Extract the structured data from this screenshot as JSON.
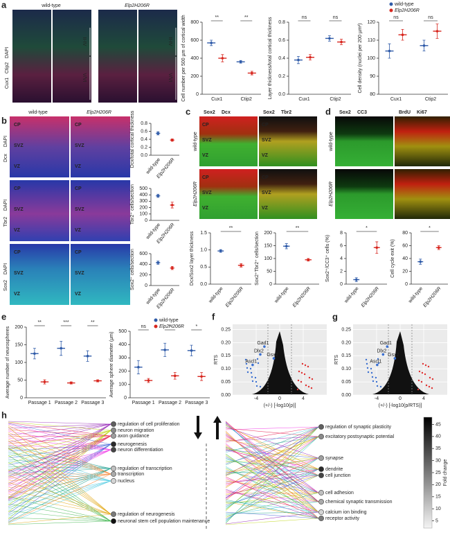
{
  "panel_labels": [
    "a",
    "b",
    "c",
    "d",
    "e",
    "f",
    "g",
    "h"
  ],
  "legend": [
    {
      "name": "wild-type",
      "color": "#2e5aa8"
    },
    {
      "name": "Elp2H206R",
      "color": "#d7261e"
    }
  ],
  "images": {
    "a": {
      "columns": [
        "wild-type",
        "Elp2H206R"
      ],
      "stains": [
        {
          "text": "Cux1",
          "color": "#3fbf3f"
        },
        {
          "text": "Ctip2",
          "color": "#e0304a"
        },
        {
          "text": "DAPI",
          "color": "#3355dd"
        }
      ],
      "layers": [
        "II-IV",
        "V/VI"
      ]
    },
    "b": {
      "columns": [
        "wild-type",
        "Elp2H206R"
      ],
      "rows": [
        [
          {
            "text": "Dcx",
            "color": "#e0304a"
          },
          {
            "text": "DAPI",
            "color": "#3355dd"
          }
        ],
        [
          {
            "text": "Tbr2",
            "color": "#e0304a"
          },
          {
            "text": "DAPI",
            "color": "#3355dd"
          }
        ],
        [
          {
            "text": "Sox2",
            "color": "#2fb84a"
          },
          {
            "text": "DAPI",
            "color": "#3355dd"
          }
        ]
      ],
      "zones": [
        "CP",
        "SVZ",
        "VZ"
      ]
    },
    "c": {
      "headers": [
        [
          {
            "text": "Sox2",
            "color": "#2fb84a"
          },
          {
            "text": "Dcx",
            "color": "#e0304a"
          }
        ],
        [
          {
            "text": "Sox2",
            "color": "#2fb84a"
          },
          {
            "text": "Tbr2",
            "color": "#e0304a"
          }
        ]
      ],
      "rows": [
        "wild-type",
        "Elp2H206R"
      ],
      "zones": [
        "CP",
        "SVZ",
        "VZ"
      ]
    },
    "d": {
      "headers": [
        [
          {
            "text": "Sox2",
            "color": "#2fb84a"
          },
          {
            "text": "CC3",
            "color": "#e0304a"
          }
        ],
        [
          {
            "text": "BrdU",
            "color": "#2fb84a"
          },
          {
            "text": "Ki67",
            "color": "#e0304a"
          }
        ]
      ],
      "rows": [
        "wild-type",
        "Elp2H206R"
      ]
    }
  },
  "chart_data": [
    {
      "type": "dot",
      "ylabel": "Cell number per 500 µm of cortical width",
      "categories": [
        "Cux1",
        "Ctip2"
      ],
      "series": [
        {
          "color": "#2e5aa8",
          "values": [
            570,
            360
          ],
          "errors": [
            30,
            15
          ]
        },
        {
          "color": "#d7261e",
          "values": [
            400,
            235
          ],
          "errors": [
            40,
            20
          ]
        }
      ],
      "ylim": [
        0,
        800
      ],
      "yticks": [
        0,
        200,
        400,
        600,
        800
      ],
      "significance": [
        "**",
        "**"
      ]
    },
    {
      "type": "dot",
      "ylabel": "Layer thickness/total cortical thickness",
      "categories": [
        "Cux1",
        "Ctip2"
      ],
      "series": [
        {
          "color": "#2e5aa8",
          "values": [
            0.38,
            0.62
          ],
          "errors": [
            0.04,
            0.03
          ]
        },
        {
          "color": "#d7261e",
          "values": [
            0.41,
            0.58
          ],
          "errors": [
            0.03,
            0.03
          ]
        }
      ],
      "ylim": [
        0,
        0.8
      ],
      "yticks": [
        {
          "value": 0,
          "label": "0.0"
        },
        0.2,
        0.4,
        0.6,
        0.8
      ],
      "significance": [
        "ns",
        "ns"
      ]
    },
    {
      "type": "dot",
      "ylabel": "Cell density (nuclei per 200 µm²)",
      "categories": [
        "Cux1",
        "Ctip2"
      ],
      "series": [
        {
          "color": "#2e5aa8",
          "values": [
            104,
            107
          ],
          "errors": [
            4,
            3
          ]
        },
        {
          "color": "#d7261e",
          "values": [
            113,
            115
          ],
          "errors": [
            3,
            4
          ]
        }
      ],
      "ylim": [
        80,
        120
      ],
      "yticks": [
        80,
        90,
        100,
        110,
        120
      ],
      "significance": [
        "ns",
        "ns"
      ]
    },
    {
      "type": "dot2",
      "ylabel": "Dcx/total cortical thickness",
      "categories": [
        "wild-type",
        "Elp2H206R"
      ],
      "values": [
        0.55,
        0.38
      ],
      "errors": [
        0.04,
        0.03
      ],
      "colors": [
        "#2e5aa8",
        "#d7261e"
      ],
      "ylim": [
        0,
        0.8
      ],
      "yticks": [
        {
          "value": 0,
          "label": "0.0"
        },
        0.2,
        0.4,
        0.6,
        0.8
      ]
    },
    {
      "type": "dot2",
      "ylabel": "Tbr2⁺ cells/section",
      "categories": [
        "wild-type",
        "Elp2H206R"
      ],
      "values": [
        385,
        240
      ],
      "errors": [
        25,
        45
      ],
      "colors": [
        "#2e5aa8",
        "#d7261e"
      ],
      "ylim": [
        0,
        500
      ],
      "yticks": [
        0,
        100,
        200,
        300,
        400,
        500
      ]
    },
    {
      "type": "dot2",
      "ylabel": "Sox2⁺ cells/section",
      "categories": [
        "wild-type",
        "Elp2H206R"
      ],
      "values": [
        430,
        330
      ],
      "errors": [
        30,
        30
      ],
      "colors": [
        "#2e5aa8",
        "#d7261e"
      ],
      "ylim": [
        0,
        600
      ],
      "yticks": [
        0,
        200,
        400,
        600
      ]
    },
    {
      "type": "dot2",
      "ylabel": "Dcx/Sox2 layer thickness",
      "categories": [
        "wild-type",
        "Elp2H206R"
      ],
      "values": [
        0.97,
        0.55
      ],
      "errors": [
        0.04,
        0.05
      ],
      "colors": [
        "#2e5aa8",
        "#d7261e"
      ],
      "ylim": [
        0,
        1.5
      ],
      "yticks": [
        {
          "value": 0,
          "label": "0.0"
        },
        0.5,
        {
          "value": 1,
          "label": "1.0"
        },
        1.5
      ],
      "significance": "**"
    },
    {
      "type": "dot2",
      "ylabel": "Sox2⁺Tbr2⁺ cells/section",
      "categories": [
        "wild-type",
        "Elp2H206R"
      ],
      "values": [
        148,
        95
      ],
      "errors": [
        10,
        5
      ],
      "colors": [
        "#2e5aa8",
        "#d7261e"
      ],
      "ylim": [
        0,
        200
      ],
      "yticks": [
        0,
        50,
        100,
        150,
        200
      ],
      "significance": "**"
    },
    {
      "type": "dot2",
      "ylabel": "Sox2⁺/CC3⁺ cells (%)",
      "categories": [
        "wild-type",
        "Elp2H206R"
      ],
      "values": [
        0.7,
        5.7
      ],
      "errors": [
        0.3,
        0.9
      ],
      "colors": [
        "#2e5aa8",
        "#d7261e"
      ],
      "ylim": [
        0,
        8
      ],
      "yticks": [
        0,
        2,
        4,
        6,
        8
      ],
      "significance": "*"
    },
    {
      "type": "dot2",
      "ylabel": "Cell cycle exit (%)",
      "categories": [
        "wild-type",
        "Elp2H206R"
      ],
      "values": [
        35,
        57
      ],
      "errors": [
        4,
        3
      ],
      "colors": [
        "#2e5aa8",
        "#d7261e"
      ],
      "ylim": [
        0,
        80
      ],
      "yticks": [
        0,
        20,
        40,
        60,
        80
      ],
      "significance": "*"
    },
    {
      "type": "dot",
      "ylabel": "Average number of neurospheres",
      "categories": [
        "Passage 1",
        "Passage 2",
        "Passage 3"
      ],
      "series": [
        {
          "color": "#2e5aa8",
          "values": [
            125,
            140,
            118
          ],
          "errors": [
            15,
            20,
            15
          ]
        },
        {
          "color": "#d7261e",
          "values": [
            45,
            42,
            48
          ],
          "errors": [
            6,
            3,
            3
          ]
        }
      ],
      "ylim": [
        0,
        200
      ],
      "yticks": [
        0,
        50,
        100,
        150,
        200
      ],
      "significance": [
        "**",
        "***",
        "**"
      ]
    },
    {
      "type": "dot",
      "ylabel": "Average sphere diameter (µm)",
      "categories": [
        "Passage 1",
        "Passage 2",
        "Passage 3"
      ],
      "series": [
        {
          "color": "#2e5aa8",
          "values": [
            230,
            360,
            355
          ],
          "errors": [
            50,
            50,
            40
          ]
        },
        {
          "color": "#d7261e",
          "values": [
            130,
            165,
            160
          ],
          "errors": [
            15,
            25,
            30
          ]
        }
      ],
      "ylim": [
        0,
        500
      ],
      "yticks": [
        0,
        100,
        200,
        300,
        400,
        500
      ],
      "significance": [
        "ns",
        "*",
        "*"
      ]
    },
    {
      "type": "volcano",
      "xlabel": "(+/-) [-log10(p)]",
      "ylabel": "RTS",
      "xlim": [
        -8,
        8
      ],
      "xticks": [
        -4,
        0,
        4
      ],
      "ylim": [
        0,
        0.27
      ],
      "yticks": [
        {
          "value": 0,
          "label": "0.00"
        },
        0.05,
        {
          "value": 0.1,
          "label": "0.10"
        },
        0.15,
        {
          "value": 0.2,
          "label": "0.20"
        },
        0.25
      ],
      "labels": [
        "Gad1",
        "Dlx2",
        "Gsx2",
        "Ascl1"
      ],
      "x": [
        -2.6,
        -3.3,
        -1.0,
        -4.6
      ],
      "y": [
        0.185,
        0.155,
        0.14,
        0.115
      ]
    },
    {
      "type": "volcano",
      "xlabel": "(+/-) [-log10(p/RTS)]",
      "ylabel": "RTS",
      "xlim": [
        -8,
        8
      ],
      "xticks": [
        -4,
        0,
        4
      ],
      "ylim": [
        0,
        0.27
      ],
      "yticks": [
        {
          "value": 0,
          "label": "0.00"
        },
        0.05,
        {
          "value": 0.1,
          "label": "0.10"
        },
        0.15,
        {
          "value": 0.2,
          "label": "0.20"
        },
        0.25
      ],
      "labels": [
        "Gad1",
        "Dlx2",
        "Gsx2",
        "Ascl1"
      ],
      "x": [
        -2.2,
        -2.9,
        -0.9,
        -3.9
      ],
      "y": [
        0.185,
        0.155,
        0.14,
        0.115
      ]
    }
  ],
  "pathways": {
    "left_terms": [
      "regulation of cell proliferation",
      "neuron migration",
      "axon guidance",
      "neurogenesis",
      "neuron differentiation",
      "regulation of transcription",
      "transcription",
      "nucleus",
      "regulation of neurogenesis",
      "neuronal stem cell population maintenance"
    ],
    "right_terms": [
      "regulation of synaptic plasticity",
      "excitatory postsynaptic potential",
      "synapse",
      "dendrite",
      "cell junction",
      "cell adhesion",
      "chemical synaptic transmission",
      "calcium ion binding",
      "receptor activity"
    ],
    "colorbar": {
      "title": "Fold change",
      "lim": [
        2,
        48
      ],
      "ticks": [
        5,
        10,
        15,
        20,
        25,
        30,
        35,
        40,
        45
      ]
    }
  }
}
